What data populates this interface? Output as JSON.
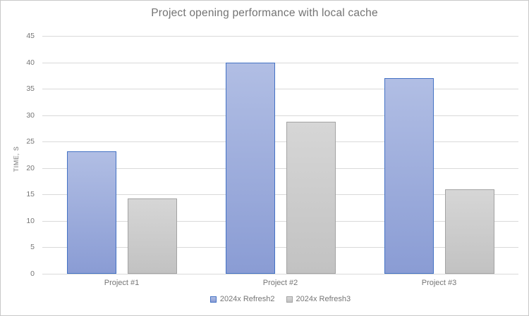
{
  "chart": {
    "title": "Project opening performance with local cache",
    "y_axis_title": "TIME, S"
  },
  "chart_data": {
    "type": "bar",
    "title": "Project opening performance with local cache",
    "xlabel": "",
    "ylabel": "TIME, S",
    "categories": [
      "Project #1",
      "Project #2",
      "Project #3"
    ],
    "series": [
      {
        "name": "2024x Refresh2",
        "values": [
          23.2,
          40,
          37
        ],
        "fill_top": "#b1bee4",
        "fill_bottom": "#8a9cd4",
        "border": "#4472c4"
      },
      {
        "name": "2024x Refresh3",
        "values": [
          14.2,
          28.7,
          16
        ],
        "fill_top": "#d6d6d6",
        "fill_bottom": "#c2c2c2",
        "border": "#a3a3a3"
      }
    ],
    "ylim": [
      0,
      45
    ],
    "yticks": [
      0,
      5,
      10,
      15,
      20,
      25,
      30,
      35,
      40,
      45
    ],
    "grid": true,
    "legend_position": "bottom"
  },
  "colors": {
    "background": "#ffffff",
    "chart_border": "#c8c8c8",
    "gridline": "#d9d9d9",
    "title_text": "#737373",
    "axis_text": "#757575"
  }
}
